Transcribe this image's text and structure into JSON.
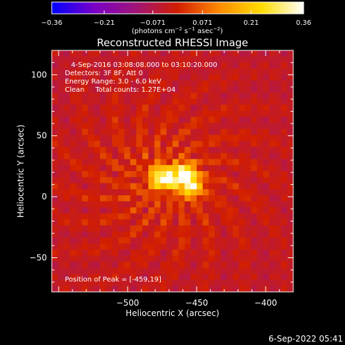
{
  "chart_data": {
    "type": "heatmap",
    "title": "Reconstructed RHESSI Image",
    "xlabel": "Heliocentric X (arcsec)",
    "ylabel": "Heliocentric Y (arcsec)",
    "xlim": [
      -555,
      -380
    ],
    "ylim": [
      -78,
      120
    ],
    "x_ticks": [
      -500,
      -450,
      -400
    ],
    "x_tick_labels": [
      "−500",
      "−450",
      "−400"
    ],
    "y_ticks": [
      -50,
      0,
      50,
      100
    ],
    "y_tick_labels": [
      "−50",
      "0",
      "50",
      "100"
    ],
    "colorbar": {
      "min": -0.36,
      "max": 0.36,
      "ticks": [
        -0.36,
        -0.21,
        -0.071,
        0.071,
        0.21,
        0.36
      ],
      "tick_labels": [
        "−0.36",
        "−0.21",
        "−0.071",
        "0.071",
        "0.21",
        "0.36"
      ],
      "unit_label_parts": [
        "(photons cm",
        "−2",
        " s",
        "−1",
        " asec",
        "−2",
        ")"
      ],
      "colors": [
        "#0000ff",
        "#7800c8",
        "#a01478",
        "#d21e00",
        "#ff8c00",
        "#ffdc00",
        "#ffffff"
      ]
    },
    "sources": [
      {
        "x": -475,
        "y": 14,
        "peak": 0.36
      },
      {
        "x": -459,
        "y": 19,
        "peak": 0.34
      },
      {
        "x": -454,
        "y": 8,
        "peak": 0.28
      }
    ],
    "annotations": {
      "time_range": "4-Sep-2016 03:08:08.000 to 03:10:20.000",
      "detectors": "Detectors: 3F 8F, Att 0",
      "energy": "Energy Range: 3.0 - 6.0 keV",
      "method": "Clean     Total counts: 1.27E+04",
      "peak": "Position of Peak = [-459,19]"
    }
  },
  "footer_date": "6-Sep-2022 05:41"
}
